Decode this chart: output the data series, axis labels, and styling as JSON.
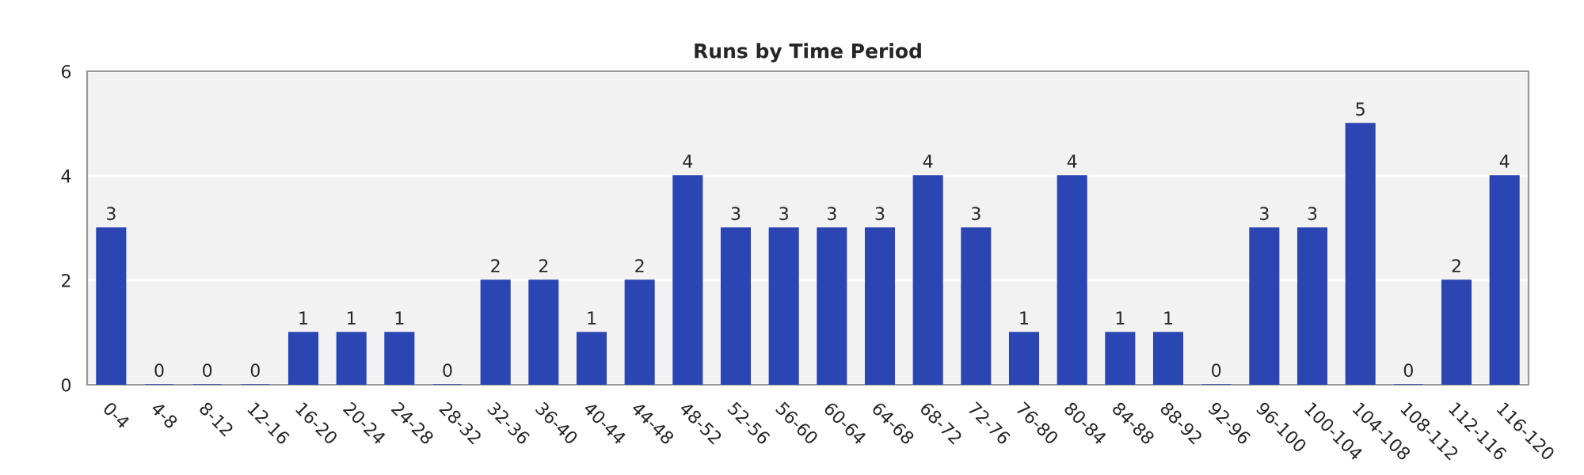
{
  "chart_data": {
    "type": "bar",
    "title": "Runs by Time Period",
    "categories": [
      "0-4",
      "4-8",
      "8-12",
      "12-16",
      "16-20",
      "20-24",
      "24-28",
      "28-32",
      "32-36",
      "36-40",
      "40-44",
      "44-48",
      "48-52",
      "52-56",
      "56-60",
      "60-64",
      "64-68",
      "68-72",
      "72-76",
      "76-80",
      "80-84",
      "84-88",
      "88-92",
      "92-96",
      "96-100",
      "100-104",
      "104-108",
      "108-112",
      "112-116",
      "116-120"
    ],
    "values": [
      3,
      0,
      0,
      0,
      1,
      1,
      1,
      0,
      2,
      2,
      1,
      2,
      4,
      3,
      3,
      3,
      3,
      4,
      3,
      1,
      4,
      1,
      1,
      0,
      3,
      3,
      5,
      0,
      2,
      4
    ],
    "color": "#2b45b2",
    "ylim": [
      0,
      6
    ],
    "yticks": [
      0,
      2,
      4,
      6
    ],
    "grid": "y",
    "data_labels": true
  }
}
